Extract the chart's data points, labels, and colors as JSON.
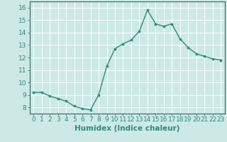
{
  "x": [
    0,
    1,
    2,
    3,
    4,
    5,
    6,
    7,
    8,
    9,
    10,
    11,
    12,
    13,
    14,
    15,
    16,
    17,
    18,
    19,
    20,
    21,
    22,
    23
  ],
  "y": [
    9.2,
    9.2,
    8.9,
    8.7,
    8.5,
    8.1,
    7.9,
    7.8,
    9.0,
    11.3,
    12.7,
    13.1,
    13.4,
    14.1,
    15.8,
    14.7,
    14.5,
    14.7,
    13.5,
    12.8,
    12.3,
    12.1,
    11.9,
    11.8
  ],
  "line_color": "#2e8b7a",
  "marker": "o",
  "marker_size": 2.2,
  "linewidth": 1.0,
  "xlabel": "Humidex (Indice chaleur)",
  "xlim": [
    -0.5,
    23.5
  ],
  "ylim": [
    7.5,
    16.5
  ],
  "yticks": [
    8,
    9,
    10,
    11,
    12,
    13,
    14,
    15,
    16
  ],
  "xticks": [
    0,
    1,
    2,
    3,
    4,
    5,
    6,
    7,
    8,
    9,
    10,
    11,
    12,
    13,
    14,
    15,
    16,
    17,
    18,
    19,
    20,
    21,
    22,
    23
  ],
  "bg_color": "#cce9e5",
  "grid_color": "#ffffff",
  "tick_labelsize": 6.5,
  "xlabel_fontsize": 7.5,
  "xlabel_fontweight": "bold",
  "spine_color": "#336655"
}
